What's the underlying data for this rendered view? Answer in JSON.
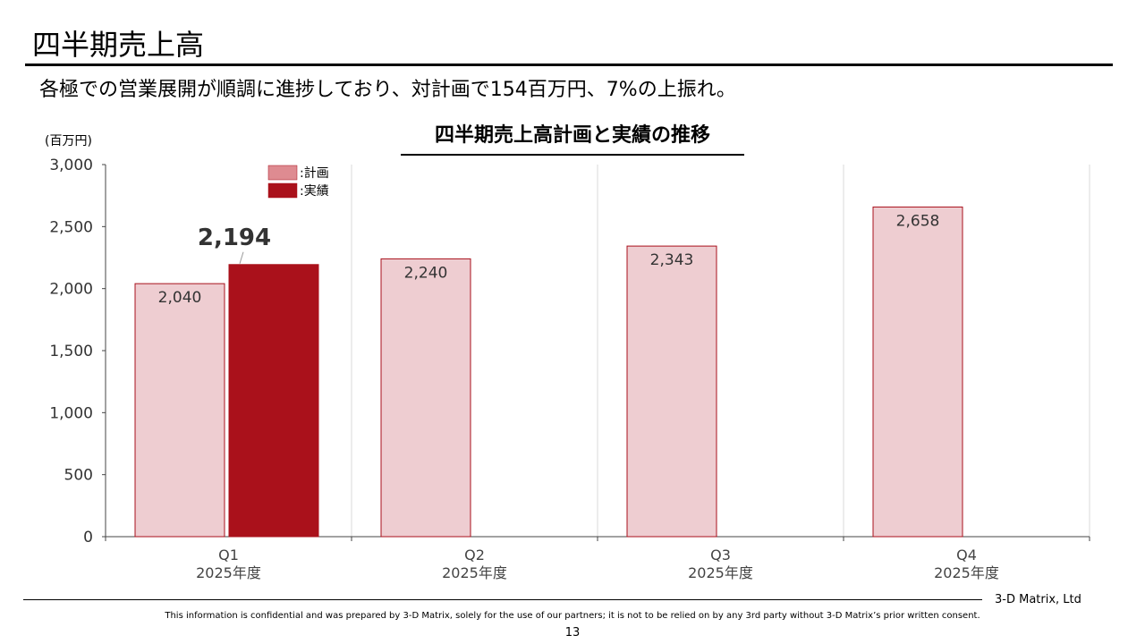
{
  "slide": {
    "title": "四半期売上高",
    "lead": "各極での営業展開が順調に進捗しており、対計画で154百万円、7%の上振れ。"
  },
  "chart_data": {
    "type": "bar",
    "title": "四半期売上高計画と実績の推移",
    "unit_label": "(百万円)",
    "categories": [
      "Q1\n2025年度",
      "Q2\n2025年度",
      "Q3\n2025年度",
      "Q4\n2025年度"
    ],
    "series": [
      {
        "name": "計画",
        "values": [
          2040,
          2240,
          2343,
          2658
        ],
        "color": "#eecdd1",
        "stroke": "#a8101c"
      },
      {
        "name": "実績",
        "values": [
          2194,
          null,
          null,
          null
        ],
        "color": "#aa111b",
        "stroke": "#aa111b"
      }
    ],
    "ylim": [
      0,
      3000
    ],
    "yticks": [
      0,
      500,
      1000,
      1500,
      2000,
      2500,
      3000
    ],
    "ytick_labels": [
      "0",
      "500",
      "1,000",
      "1,500",
      "2,000",
      "2,500",
      "3,000"
    ],
    "data_labels": [
      {
        "series": 0,
        "index": 0,
        "text": "2,040"
      },
      {
        "series": 0,
        "index": 1,
        "text": "2,240"
      },
      {
        "series": 0,
        "index": 2,
        "text": "2,343"
      },
      {
        "series": 0,
        "index": 3,
        "text": "2,658"
      },
      {
        "series": 1,
        "index": 0,
        "text": "2,194",
        "emphasis": true
      }
    ],
    "legend": {
      "placement": "top-left",
      "entries": [
        ":計画",
        ":実績"
      ]
    },
    "grid": "vertical-category-separators"
  },
  "footer": {
    "company": "3-D Matrix, Ltd",
    "disclaimer": "This information is confidential and was prepared by 3-D Matrix, solely for the use of our partners; it is not to be relied on by any 3rd party without 3-D Matrix’s prior written consent.",
    "page_number": "13"
  }
}
